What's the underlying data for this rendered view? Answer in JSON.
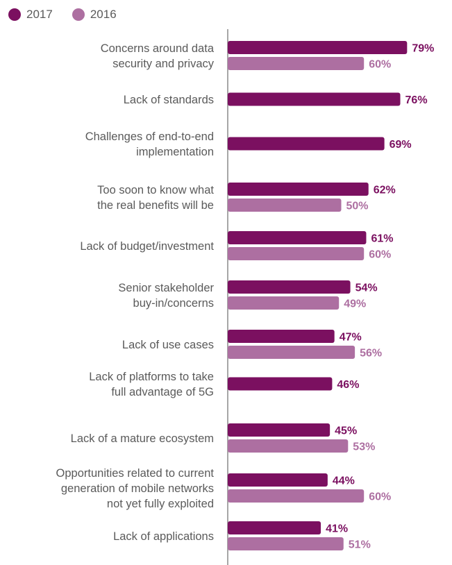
{
  "chart_data": {
    "type": "bar",
    "orientation": "horizontal",
    "categories": [
      [
        "Concerns around data",
        "security and privacy"
      ],
      [
        "Lack of standards"
      ],
      [
        "Challenges of end-to-end",
        "implementation"
      ],
      [
        "Too soon to know what",
        "the real benefits will be"
      ],
      [
        "Lack of budget/investment"
      ],
      [
        "Senior stakeholder",
        "buy-in/concerns"
      ],
      [
        "Lack of use cases"
      ],
      [
        "Lack of platforms to take",
        "full advantage of 5G"
      ],
      [
        "Lack of a mature ecosystem"
      ],
      [
        "Opportunities related to current",
        "generation of mobile networks",
        "not yet fully exploited"
      ],
      [
        "Lack of applications"
      ]
    ],
    "series": [
      {
        "name": "2017",
        "color": "#7b1060",
        "values": [
          79,
          76,
          69,
          62,
          61,
          54,
          47,
          46,
          45,
          44,
          41
        ]
      },
      {
        "name": "2016",
        "color": "#ad6fa1",
        "values": [
          60,
          null,
          null,
          50,
          60,
          49,
          56,
          null,
          53,
          60,
          51
        ]
      }
    ],
    "value_suffix": "%",
    "legend_position": "top-left",
    "xlim": [
      0,
      100
    ],
    "grid": false
  },
  "colors": {
    "axis": "#a6a6a6",
    "label_text": "#5a5a5a"
  }
}
